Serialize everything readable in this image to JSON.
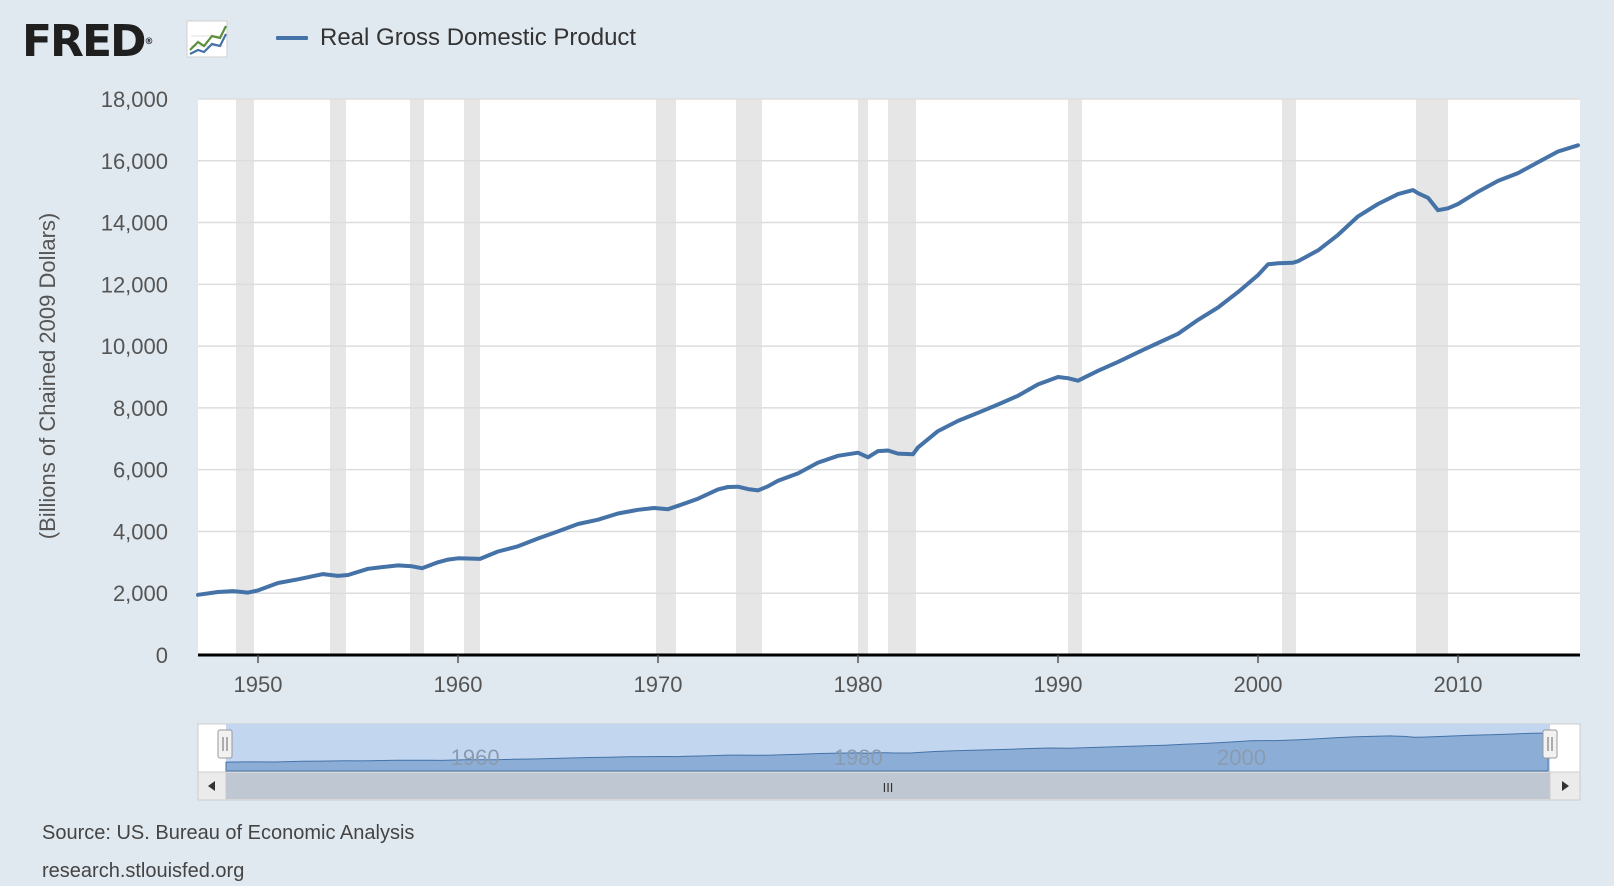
{
  "header": {
    "logo_text": "FRED",
    "logo_reg": "®"
  },
  "legend": {
    "label": "Real Gross Domestic Product",
    "color": "#4572a7"
  },
  "footer": {
    "source": "Source: US. Bureau of Economic Analysis",
    "site": "research.stlouisfed.org"
  },
  "colors": {
    "background": "#e1e9f0",
    "plot_background": "#ffffff",
    "series": "#4572a7",
    "recession": "#e6e6e6",
    "gridline": "#dddddd",
    "navigator_fill": "#8caed6",
    "navigator_window": "#c3d6ef"
  },
  "navigator": {
    "labels": [
      "1960",
      "1980",
      "2000"
    ],
    "scroll_grip": "III"
  },
  "chart_data": {
    "type": "line",
    "title": "Real Gross Domestic Product",
    "ylabel": "(Billions of Chained 2009 Dollars)",
    "xlabel": "",
    "xlim": [
      1947,
      2016.1
    ],
    "ylim": [
      0,
      18000
    ],
    "yticks": [
      0,
      2000,
      4000,
      6000,
      8000,
      10000,
      12000,
      14000,
      16000,
      18000
    ],
    "ytick_labels": [
      "0",
      "2,000",
      "4,000",
      "6,000",
      "8,000",
      "10,000",
      "12,000",
      "14,000",
      "16,000",
      "18,000"
    ],
    "xticks": [
      1950,
      1960,
      1970,
      1980,
      1990,
      2000,
      2010
    ],
    "xtick_labels": [
      "1950",
      "1960",
      "1970",
      "1980",
      "1990",
      "2000",
      "2010"
    ],
    "grid": true,
    "recessions": [
      [
        1948.9,
        1949.8
      ],
      [
        1953.6,
        1954.4
      ],
      [
        1957.6,
        1958.3
      ],
      [
        1960.3,
        1961.1
      ],
      [
        1969.9,
        1970.9
      ],
      [
        1973.9,
        1975.2
      ],
      [
        1980.0,
        1980.5
      ],
      [
        1981.5,
        1982.9
      ],
      [
        1990.5,
        1991.2
      ],
      [
        2001.2,
        2001.9
      ],
      [
        2007.9,
        2009.5
      ]
    ],
    "series": [
      {
        "name": "Real Gross Domestic Product",
        "x": [
          1947,
          1948,
          1948.75,
          1949.5,
          1950,
          1951,
          1952,
          1953.25,
          1954,
          1954.5,
          1955.5,
          1956,
          1957,
          1957.7,
          1958.2,
          1959,
          1959.5,
          1960,
          1960.7,
          1961.1,
          1962,
          1963,
          1964,
          1965,
          1966,
          1967,
          1968,
          1969,
          1969.8,
          1970.5,
          1971,
          1972,
          1973,
          1973.5,
          1974,
          1974.5,
          1975,
          1975.5,
          1976,
          1977,
          1978,
          1979,
          1980,
          1980.5,
          1981,
          1981.5,
          1982,
          1982.75,
          1983,
          1984,
          1985,
          1986,
          1987,
          1988,
          1989,
          1990,
          1990.5,
          1991,
          1992,
          1993,
          1994,
          1995,
          1996,
          1997,
          1998,
          1999,
          2000,
          2000.5,
          2001,
          2001.75,
          2002,
          2003,
          2004,
          2005,
          2006,
          2007,
          2007.75,
          2008,
          2008.5,
          2009,
          2009.5,
          2010,
          2011,
          2012,
          2013,
          2014,
          2015,
          2016
        ],
        "values": [
          1950,
          2040,
          2070,
          2020,
          2090,
          2330,
          2450,
          2620,
          2560,
          2590,
          2790,
          2830,
          2900,
          2870,
          2810,
          3000,
          3090,
          3130,
          3120,
          3110,
          3350,
          3520,
          3770,
          4000,
          4240,
          4380,
          4580,
          4700,
          4760,
          4720,
          4830,
          5060,
          5360,
          5440,
          5450,
          5370,
          5330,
          5460,
          5640,
          5880,
          6230,
          6450,
          6550,
          6400,
          6600,
          6620,
          6520,
          6500,
          6720,
          7250,
          7580,
          7840,
          8110,
          8390,
          8760,
          9000,
          8960,
          8880,
          9200,
          9490,
          9800,
          10100,
          10400,
          10850,
          11250,
          11750,
          12300,
          12650,
          12680,
          12700,
          12750,
          13100,
          13600,
          14200,
          14600,
          14920,
          15050,
          14950,
          14800,
          14400,
          14460,
          14600,
          15000,
          15350,
          15600,
          15950,
          16300,
          16500
        ]
      }
    ]
  }
}
